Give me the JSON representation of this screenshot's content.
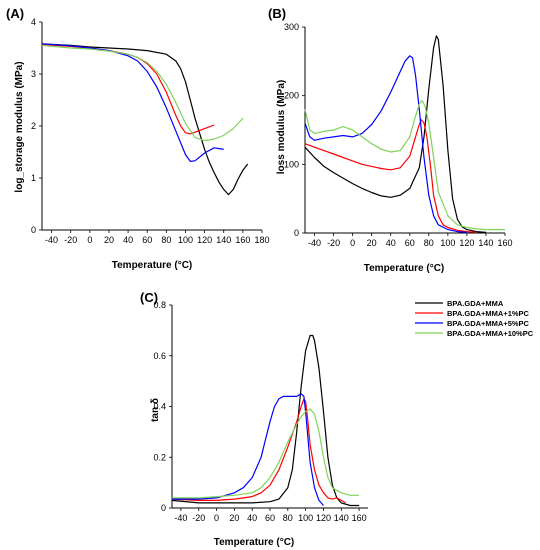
{
  "chart_data": [
    {
      "type": "line",
      "panel_label": "(A)",
      "xlabel": "Temperature (°C)",
      "ylabel": "log_storage modulus (MPa)",
      "xlim": [
        -50,
        180
      ],
      "ylim": [
        0,
        4
      ],
      "xticks": [
        -40,
        -20,
        0,
        20,
        40,
        60,
        80,
        100,
        120,
        140,
        160,
        180
      ],
      "yticks": [
        0,
        1,
        2,
        3,
        4
      ],
      "series": [
        {
          "color": "#000000",
          "x": [
            -50,
            -20,
            0,
            20,
            40,
            60,
            80,
            90,
            95,
            100,
            105,
            110,
            115,
            120,
            125,
            130,
            135,
            140,
            145,
            150,
            155,
            160,
            165
          ],
          "y": [
            3.58,
            3.55,
            3.52,
            3.5,
            3.48,
            3.45,
            3.38,
            3.25,
            3.1,
            2.85,
            2.5,
            2.15,
            1.85,
            1.55,
            1.3,
            1.1,
            0.92,
            0.78,
            0.68,
            0.78,
            0.98,
            1.15,
            1.27
          ]
        },
        {
          "color": "#ff0000",
          "x": [
            -50,
            -20,
            0,
            20,
            40,
            50,
            60,
            70,
            80,
            90,
            95,
            100,
            105,
            110,
            120,
            130
          ],
          "y": [
            3.57,
            3.53,
            3.5,
            3.45,
            3.38,
            3.32,
            3.2,
            3.0,
            2.65,
            2.2,
            2.0,
            1.87,
            1.85,
            1.88,
            1.95,
            2.02
          ]
        },
        {
          "color": "#0000ff",
          "x": [
            -50,
            -20,
            0,
            20,
            40,
            50,
            60,
            70,
            80,
            90,
            100,
            105,
            110,
            120,
            130,
            140
          ],
          "y": [
            3.58,
            3.54,
            3.5,
            3.45,
            3.35,
            3.25,
            3.05,
            2.75,
            2.35,
            1.9,
            1.45,
            1.32,
            1.33,
            1.48,
            1.58,
            1.55
          ]
        },
        {
          "color": "#7fd45a",
          "x": [
            -50,
            -20,
            0,
            20,
            40,
            50,
            60,
            70,
            80,
            90,
            100,
            110,
            120,
            130,
            140,
            150,
            160
          ],
          "y": [
            3.55,
            3.5,
            3.48,
            3.44,
            3.38,
            3.32,
            3.22,
            3.05,
            2.8,
            2.45,
            2.05,
            1.78,
            1.72,
            1.75,
            1.82,
            1.95,
            2.15
          ]
        }
      ]
    },
    {
      "type": "line",
      "panel_label": "(B)",
      "xlabel": "Temperature (°C)",
      "ylabel": "loss modulus (MPa)",
      "xlim": [
        -50,
        160
      ],
      "ylim": [
        0,
        300
      ],
      "xticks": [
        -40,
        -20,
        0,
        20,
        40,
        60,
        80,
        100,
        120,
        140,
        160
      ],
      "yticks": [
        0,
        100,
        200,
        300
      ],
      "series": [
        {
          "color": "#000000",
          "x": [
            -50,
            -40,
            -30,
            -20,
            -10,
            0,
            10,
            20,
            30,
            40,
            50,
            60,
            70,
            75,
            80,
            85,
            88,
            90,
            95,
            100,
            105,
            110,
            115,
            120,
            130,
            140
          ],
          "y": [
            125,
            110,
            97,
            88,
            80,
            72,
            65,
            59,
            54,
            52,
            55,
            65,
            95,
            140,
            210,
            270,
            287,
            282,
            215,
            120,
            50,
            20,
            9,
            5,
            2,
            1
          ]
        },
        {
          "color": "#ff0000",
          "x": [
            -50,
            -40,
            -30,
            -20,
            -10,
            0,
            10,
            20,
            30,
            40,
            50,
            60,
            65,
            70,
            72,
            75,
            78,
            82,
            85,
            90,
            95,
            100,
            110,
            120,
            130
          ],
          "y": [
            130,
            125,
            120,
            115,
            110,
            105,
            100,
            97,
            94,
            92,
            95,
            112,
            135,
            158,
            165,
            160,
            140,
            95,
            55,
            25,
            12,
            8,
            4,
            2,
            1
          ]
        },
        {
          "color": "#0000ff",
          "x": [
            -50,
            -45,
            -40,
            -30,
            -20,
            -10,
            0,
            10,
            20,
            30,
            40,
            50,
            55,
            60,
            63,
            66,
            70,
            75,
            80,
            85,
            90,
            100,
            110,
            120
          ],
          "y": [
            160,
            140,
            135,
            138,
            140,
            142,
            140,
            145,
            158,
            178,
            205,
            235,
            250,
            258,
            255,
            230,
            180,
            110,
            55,
            25,
            12,
            5,
            2,
            1
          ]
        },
        {
          "color": "#7fd45a",
          "x": [
            -50,
            -45,
            -40,
            -30,
            -20,
            -10,
            0,
            10,
            20,
            30,
            40,
            50,
            60,
            65,
            70,
            73,
            76,
            80,
            85,
            90,
            100,
            110,
            120,
            130,
            140,
            150,
            160
          ],
          "y": [
            180,
            150,
            145,
            148,
            150,
            155,
            150,
            140,
            130,
            122,
            118,
            120,
            140,
            165,
            188,
            193,
            185,
            160,
            110,
            60,
            25,
            12,
            8,
            6,
            5,
            5,
            5
          ]
        }
      ]
    },
    {
      "type": "line",
      "panel_label": "(C)",
      "xlabel": "Temperature (°C)",
      "ylabel": "tan δ",
      "xlim": [
        -50,
        170
      ],
      "ylim": [
        0,
        0.8
      ],
      "xticks": [
        -40,
        -20,
        0,
        20,
        40,
        60,
        80,
        100,
        120,
        140,
        160
      ],
      "yticks": [
        0,
        0.2,
        0.4,
        0.6,
        0.8
      ],
      "ytick_labels": [
        "0",
        "0.2",
        "0.4",
        "0.6",
        "0.8"
      ],
      "legend": {
        "position": "top-right",
        "entries": [
          {
            "label": "BPA.GDA+MMA",
            "color": "#000000"
          },
          {
            "label": "BPA.GDA+MMA+1%PC",
            "color": "#ff0000"
          },
          {
            "label": "BPA.GDA+MMA+5%PC",
            "color": "#0000ff"
          },
          {
            "label": "BPA.GDA+MMA+10%PC",
            "color": "#7fd45a"
          }
        ]
      },
      "series": [
        {
          "color": "#000000",
          "x": [
            -50,
            -20,
            0,
            20,
            40,
            60,
            70,
            80,
            85,
            90,
            95,
            100,
            105,
            108,
            110,
            115,
            120,
            125,
            130,
            135,
            140,
            150,
            160
          ],
          "y": [
            0.03,
            0.02,
            0.02,
            0.02,
            0.02,
            0.025,
            0.035,
            0.08,
            0.15,
            0.3,
            0.48,
            0.62,
            0.68,
            0.68,
            0.66,
            0.55,
            0.38,
            0.2,
            0.09,
            0.04,
            0.02,
            0.01,
            0.01
          ]
        },
        {
          "color": "#ff0000",
          "x": [
            -50,
            -20,
            0,
            20,
            40,
            50,
            60,
            70,
            80,
            90,
            95,
            98,
            100,
            102,
            105,
            110,
            115,
            120,
            125,
            130,
            135,
            140,
            145
          ],
          "y": [
            0.035,
            0.03,
            0.03,
            0.035,
            0.045,
            0.06,
            0.09,
            0.15,
            0.24,
            0.34,
            0.4,
            0.43,
            0.42,
            0.36,
            0.25,
            0.15,
            0.09,
            0.06,
            0.04,
            0.035,
            0.04,
            0.03,
            0.02
          ]
        },
        {
          "color": "#0000ff",
          "x": [
            -50,
            -20,
            0,
            20,
            30,
            40,
            50,
            55,
            60,
            65,
            70,
            75,
            80,
            90,
            95,
            98,
            100,
            102,
            105,
            110,
            115,
            120
          ],
          "y": [
            0.035,
            0.035,
            0.04,
            0.06,
            0.08,
            0.12,
            0.2,
            0.27,
            0.34,
            0.4,
            0.43,
            0.44,
            0.44,
            0.44,
            0.45,
            0.44,
            0.38,
            0.3,
            0.18,
            0.08,
            0.03,
            0.01
          ]
        },
        {
          "color": "#7fd45a",
          "x": [
            -50,
            -20,
            0,
            20,
            40,
            50,
            60,
            70,
            80,
            90,
            95,
            100,
            105,
            110,
            115,
            120,
            125,
            130,
            140,
            150,
            160
          ],
          "y": [
            0.04,
            0.04,
            0.045,
            0.05,
            0.06,
            0.08,
            0.12,
            0.18,
            0.26,
            0.33,
            0.36,
            0.38,
            0.39,
            0.37,
            0.3,
            0.2,
            0.12,
            0.08,
            0.06,
            0.05,
            0.05
          ]
        }
      ]
    }
  ]
}
